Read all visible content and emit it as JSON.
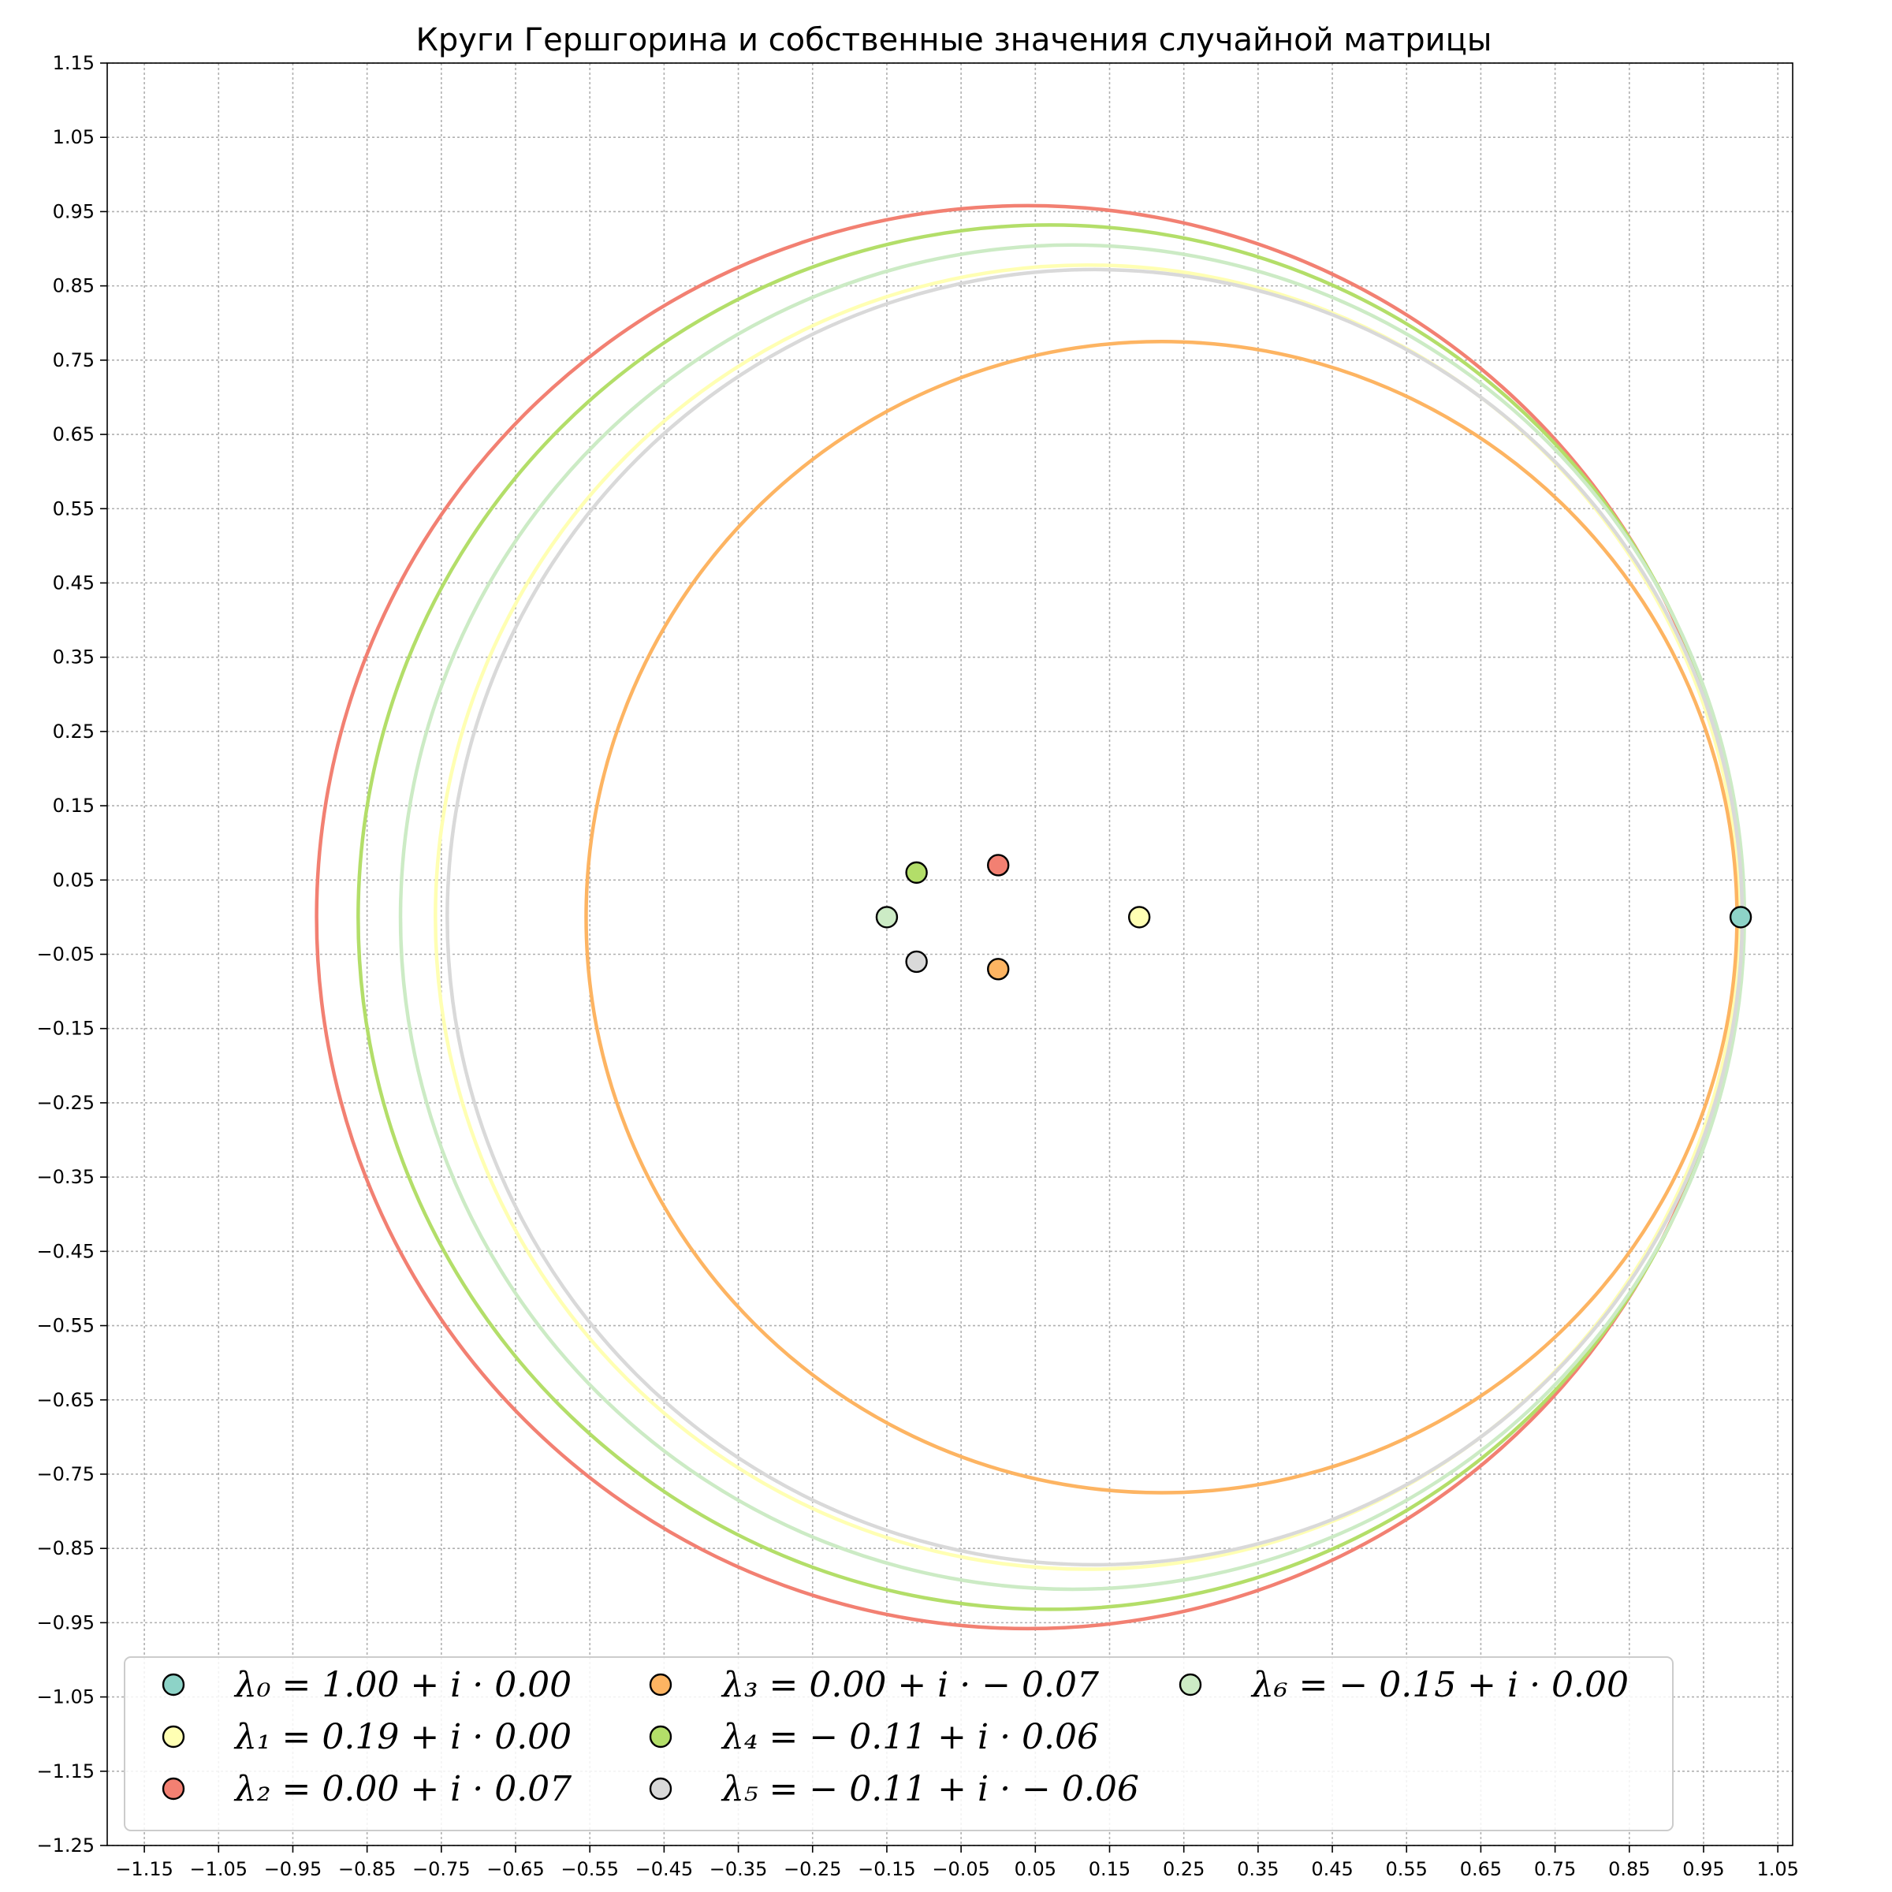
{
  "chart_data": {
    "type": "scatter",
    "title": "Круги Гершгорина и собственные значения случайной матрицы",
    "xlabel": "",
    "ylabel": "",
    "xlim": [
      -1.2,
      1.07
    ],
    "ylim": [
      -1.25,
      1.15
    ],
    "x_ticks": [
      -1.15,
      -1.05,
      -0.95,
      -0.85,
      -0.75,
      -0.65,
      -0.55,
      -0.45,
      -0.35,
      -0.25,
      -0.15,
      -0.05,
      0.05,
      0.15,
      0.25,
      0.35,
      0.45,
      0.55,
      0.65,
      0.75,
      0.85,
      0.95,
      1.05
    ],
    "x_tick_labels": [
      "−1.15",
      "−1.05",
      "−0.95",
      "−0.85",
      "−0.75",
      "−0.65",
      "−0.55",
      "−0.45",
      "−0.35",
      "−0.25",
      "−0.15",
      "−0.05",
      "0.05",
      "0.15",
      "0.25",
      "0.35",
      "0.45",
      "0.55",
      "0.65",
      "0.75",
      "0.85",
      "0.95",
      "1.05"
    ],
    "y_ticks": [
      1.15,
      1.05,
      0.95,
      0.85,
      0.75,
      0.65,
      0.55,
      0.45,
      0.35,
      0.25,
      0.15,
      0.05,
      -0.05,
      -0.15,
      -0.25,
      -0.35,
      -0.45,
      -0.55,
      -0.65,
      -0.75,
      -0.85,
      -0.95,
      -1.05,
      -1.15,
      -1.25
    ],
    "y_tick_labels": [
      "1.15",
      "1.05",
      "0.95",
      "0.85",
      "0.75",
      "0.65",
      "0.55",
      "0.45",
      "0.35",
      "0.25",
      "0.15",
      "0.05",
      "−0.05",
      "−0.15",
      "−0.25",
      "−0.35",
      "−0.45",
      "−0.55",
      "−0.65",
      "−0.75",
      "−0.85",
      "−0.95",
      "−1.05",
      "−1.15",
      "−1.25"
    ],
    "grid": true,
    "legend_position": "bottom",
    "circles": [
      {
        "center": [
          0.04,
          0.0
        ],
        "radius": 0.958,
        "color": "#f28072"
      },
      {
        "center": [
          0.07,
          0.0
        ],
        "radius": 0.932,
        "color": "#b3de69"
      },
      {
        "center": [
          0.1,
          0.0
        ],
        "radius": 0.905,
        "color": "#ccebc5"
      },
      {
        "center": [
          0.12,
          0.0
        ],
        "radius": 0.878,
        "color": "#ffffb3"
      },
      {
        "center": [
          0.13,
          0.0
        ],
        "radius": 0.872,
        "color": "#d9d9d9"
      },
      {
        "center": [
          0.22,
          0.0
        ],
        "radius": 0.775,
        "color": "#fdb462"
      }
    ],
    "eigenvalues": [
      {
        "re": 1.0,
        "im": 0.0,
        "color": "#8dd3c7",
        "label": "λ₀ = 1.00 + i · 0.00"
      },
      {
        "re": 0.19,
        "im": 0.0,
        "color": "#ffffb3",
        "label": "λ₁ = 0.19 + i · 0.00"
      },
      {
        "re": 0.0,
        "im": 0.07,
        "color": "#f28072",
        "label": "λ₂ = 0.00 + i · 0.07"
      },
      {
        "re": 0.0,
        "im": -0.07,
        "color": "#fdb462",
        "label": "λ₃ = 0.00 + i · − 0.07"
      },
      {
        "re": -0.11,
        "im": 0.06,
        "color": "#b3de69",
        "label": "λ₄ = − 0.11 + i · 0.06"
      },
      {
        "re": -0.11,
        "im": -0.06,
        "color": "#d9d9d9",
        "label": "λ₅ = − 0.11 + i · − 0.06"
      },
      {
        "re": -0.15,
        "im": 0.0,
        "color": "#ccebc5",
        "label": "λ₆ = − 0.15 + i · 0.00"
      }
    ]
  }
}
